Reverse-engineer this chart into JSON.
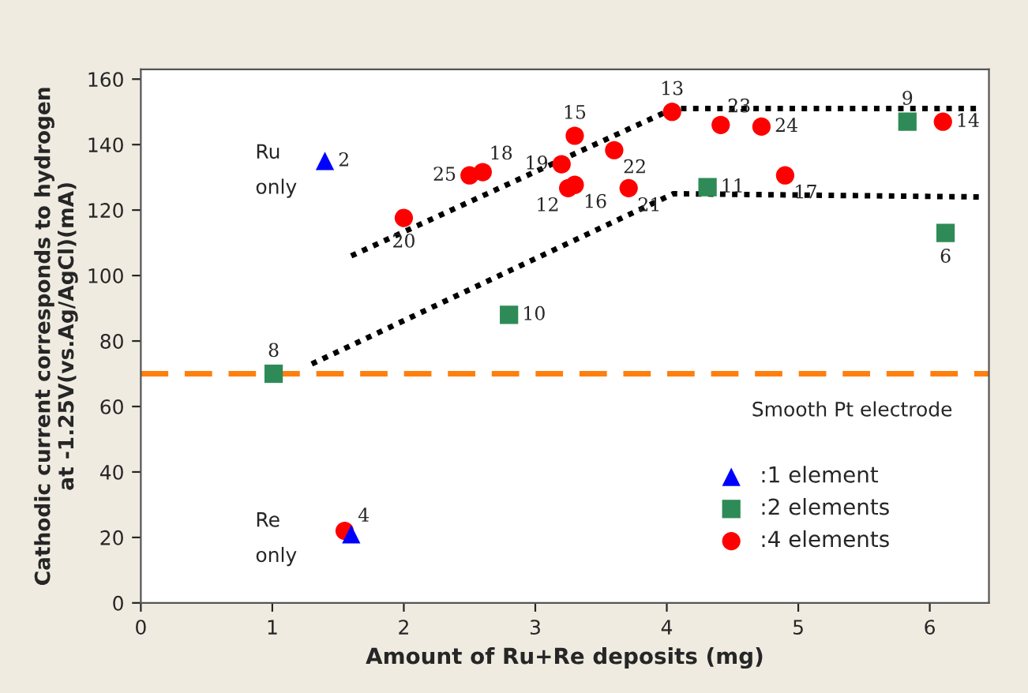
{
  "chart_data": {
    "type": "scatter",
    "xlabel": "Amount of Ru+Re deposits (mg)",
    "ylabel": "Cathodic current corresponds to hydrogen\nat -1.25V(vs.Ag/AgCl)(mA)",
    "xlim": [
      0,
      6.45
    ],
    "ylim": [
      0,
      163
    ],
    "xticks": [
      0,
      1,
      2,
      3,
      4,
      5,
      6
    ],
    "yticks": [
      0,
      20,
      40,
      60,
      80,
      100,
      120,
      140,
      160
    ],
    "grid": false,
    "legend": "bottom right",
    "series": [
      {
        "name": ":1 element",
        "color": "#0000ff",
        "marker": "triangle",
        "x": [
          1.4,
          1.6
        ],
        "values": [
          135,
          21
        ]
      },
      {
        "name": ":2 elements",
        "color": "#2e8b57",
        "marker": "square",
        "x": [
          1.01,
          2.8,
          4.31,
          5.83,
          6.12
        ],
        "values": [
          70,
          88,
          127,
          147,
          113
        ]
      },
      {
        "name": ":4 elements",
        "color": "#ff0000",
        "marker": "circle",
        "x": [
          1.55,
          2.0,
          2.5,
          2.6,
          3.3,
          3.2,
          3.25,
          3.3,
          3.6,
          3.71,
          4.04,
          4.41,
          4.72,
          4.9,
          6.1
        ],
        "values": [
          22,
          117.6,
          130.6,
          131.6,
          142.7,
          134,
          126.7,
          127.7,
          138.3,
          126.7,
          150,
          146,
          145.5,
          130.6,
          147
        ]
      },
      {
        "type": "line",
        "color": "#000000",
        "line_style": "dotted",
        "x": [
          1.6,
          4.05,
          6.4
        ],
        "values": [
          106,
          151,
          151
        ]
      },
      {
        "type": "line",
        "color": "#000000",
        "line_style": "dotted",
        "x": [
          1.3,
          4.05,
          6.4
        ],
        "values": [
          73,
          125,
          124
        ]
      }
    ],
    "ref_lines": [
      {
        "axis": "y",
        "value": 70,
        "color": "#ff7f0e",
        "line_style": "dashed"
      }
    ],
    "annotations": [
      "Ru\n\nonly",
      "Re\n\nonly",
      "Smooth Pt electrode",
      {
        "text": "2",
        "x": 1.4,
        "y": 135
      },
      {
        "text": "4",
        "x": 1.6,
        "y": 21
      },
      {
        "text": "8",
        "x": 1.01,
        "y": 70
      },
      {
        "text": "10",
        "x": 2.8,
        "y": 88
      },
      {
        "text": "11",
        "x": 4.31,
        "y": 127
      },
      {
        "text": "9",
        "x": 5.83,
        "y": 147
      },
      {
        "text": "6",
        "x": 6.12,
        "y": 113
      },
      {
        "text": "20",
        "x": 2.0,
        "y": 117.6
      },
      {
        "text": "25",
        "x": 2.5,
        "y": 130.6
      },
      {
        "text": "18",
        "x": 2.6,
        "y": 131.6
      },
      {
        "text": "15",
        "x": 3.3,
        "y": 142.7
      },
      {
        "text": "19",
        "x": 3.2,
        "y": 134
      },
      {
        "text": "12",
        "x": 3.25,
        "y": 126.7
      },
      {
        "text": "16",
        "x": 3.3,
        "y": 127.7
      },
      {
        "text": "22",
        "x": 3.6,
        "y": 138.3
      },
      {
        "text": "21",
        "x": 3.71,
        "y": 126.7
      },
      {
        "text": "13",
        "x": 4.04,
        "y": 150
      },
      {
        "text": "23",
        "x": 4.41,
        "y": 146
      },
      {
        "text": "24",
        "x": 4.72,
        "y": 145.5
      },
      {
        "text": "17",
        "x": 4.9,
        "y": 130.6
      },
      {
        "text": "14",
        "x": 6.1,
        "y": 147
      }
    ]
  }
}
